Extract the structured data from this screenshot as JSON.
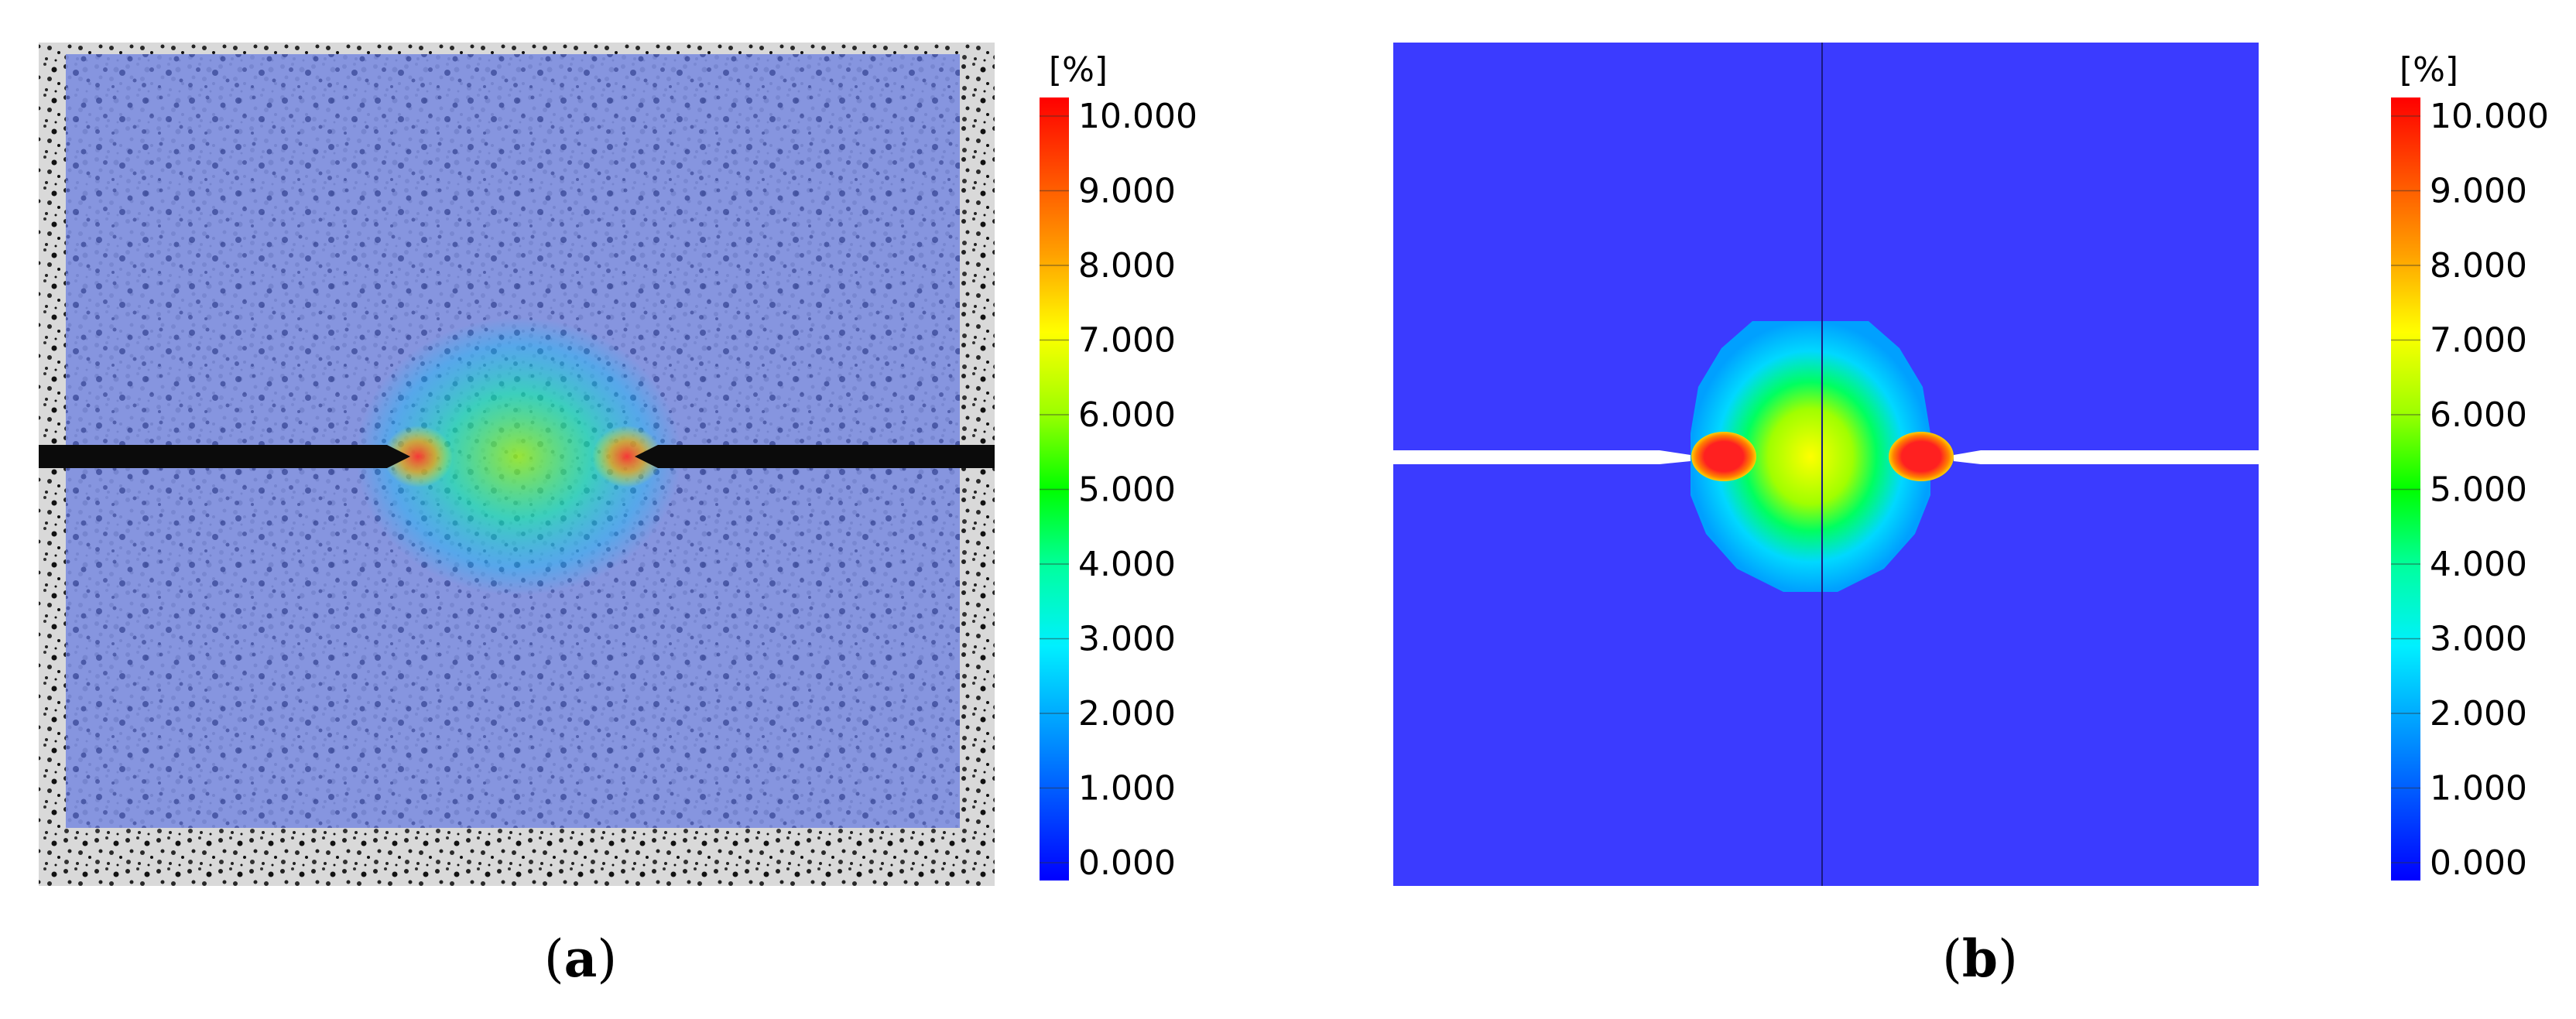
{
  "panels": [
    {
      "id": "a",
      "label": "a",
      "colorbar": {
        "unit": "[%]",
        "ticks": [
          "10.000",
          "9.000",
          "8.000",
          "7.000",
          "6.000",
          "5.000",
          "4.000",
          "3.000",
          "2.000",
          "1.000",
          "0.000"
        ]
      }
    },
    {
      "id": "b",
      "label": "b",
      "colorbar": {
        "unit": "[%]",
        "ticks": [
          "10.000",
          "9.000",
          "8.000",
          "7.000",
          "6.000",
          "5.000",
          "4.000",
          "3.000",
          "2.000",
          "1.000",
          "0.000"
        ]
      }
    }
  ],
  "colors": {
    "scale": [
      "#0000ff",
      "#0050ff",
      "#00a0ff",
      "#00f0ff",
      "#00ffa0",
      "#00ff00",
      "#a0ff00",
      "#ffff00",
      "#ffa000",
      "#ff5000",
      "#ff0000"
    ],
    "sim_background": "#3b3bff"
  }
}
